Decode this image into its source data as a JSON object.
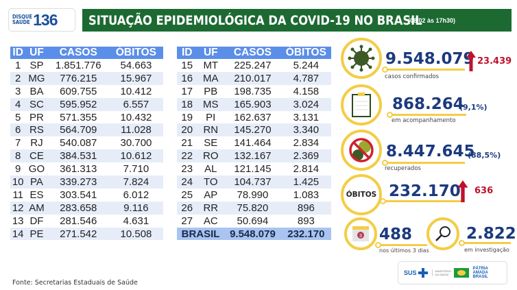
{
  "header": {
    "logo_top": "DISQUE",
    "logo_bottom": "SAÚDE",
    "logo_number": "136",
    "title": "SITUAÇÃO EPIDEMIOLÓGICA DA COVID-19 NO BRASIL",
    "date": "(08/02 às 17h30)"
  },
  "table": {
    "columns": [
      "ID",
      "UF",
      "CASOS",
      "ÓBITOS"
    ],
    "left": [
      [
        "1",
        "SP",
        "1.851.776",
        "54.663"
      ],
      [
        "2",
        "MG",
        "776.215",
        "15.967"
      ],
      [
        "3",
        "BA",
        "609.755",
        "10.412"
      ],
      [
        "4",
        "SC",
        "595.952",
        "6.557"
      ],
      [
        "5",
        "PR",
        "571.355",
        "10.432"
      ],
      [
        "6",
        "RS",
        "564.709",
        "11.028"
      ],
      [
        "7",
        "RJ",
        "540.087",
        "30.700"
      ],
      [
        "8",
        "CE",
        "384.531",
        "10.612"
      ],
      [
        "9",
        "GO",
        "361.313",
        "7.710"
      ],
      [
        "10",
        "PA",
        "339.273",
        "7.824"
      ],
      [
        "11",
        "ES",
        "303.541",
        "6.012"
      ],
      [
        "12",
        "AM",
        "283.658",
        "9.116"
      ],
      [
        "13",
        "DF",
        "281.546",
        "4.631"
      ],
      [
        "14",
        "PE",
        "271.542",
        "10.508"
      ]
    ],
    "right": [
      [
        "15",
        "MT",
        "225.247",
        "5.244"
      ],
      [
        "16",
        "MA",
        "210.017",
        "4.787"
      ],
      [
        "17",
        "PB",
        "198.735",
        "4.158"
      ],
      [
        "18",
        "MS",
        "165.903",
        "3.024"
      ],
      [
        "19",
        "PI",
        "162.637",
        "3.131"
      ],
      [
        "20",
        "RN",
        "145.270",
        "3.340"
      ],
      [
        "21",
        "SE",
        "141.464",
        "2.834"
      ],
      [
        "22",
        "RO",
        "132.167",
        "2.369"
      ],
      [
        "23",
        "AL",
        "121.145",
        "2.814"
      ],
      [
        "24",
        "TO",
        "104.737",
        "1.425"
      ],
      [
        "25",
        "AP",
        "78.990",
        "1.083"
      ],
      [
        "26",
        "RR",
        "75.820",
        "896"
      ],
      [
        "27",
        "AC",
        "50.694",
        "893"
      ]
    ],
    "total": {
      "label": "BRASIL",
      "casos": "9.548.079",
      "obitos": "232.170"
    }
  },
  "stats": {
    "confirmed": {
      "value": "9.548.079",
      "increase": "23.439",
      "label": "casos confirmados",
      "icon": "virus-icon"
    },
    "monitoring": {
      "value": "868.264",
      "percent": "(9,1%)",
      "label": "em acompanhamento",
      "icon": "clipboard-icon"
    },
    "recovered": {
      "value": "8.447.645",
      "percent": "(88,5%)",
      "label": "recuperados",
      "icon": "no-virus-icon"
    },
    "deaths": {
      "badge": "ÓBITOS",
      "value": "232.170",
      "increase": "636"
    },
    "last3days": {
      "value": "488",
      "label": "nos últimos 3 dias",
      "calendar_number": "3",
      "icon": "calendar-icon"
    },
    "investigation": {
      "value": "2.822",
      "label": "em investigação",
      "icon": "magnifier-icon"
    }
  },
  "footer": {
    "source": "Fonte: Secretarias Estaduais de Saúde",
    "sus": "SUS",
    "ministry": "MINISTÉRIO DA SAÚDE",
    "gov": "PÁTRIA AMADA BRASIL"
  },
  "colors": {
    "title_bar": "#1c6a32",
    "table_header": "#5b8ee8",
    "number": "#1b3a7e",
    "increase": "#c0112b",
    "ring": "#f3cd45"
  }
}
